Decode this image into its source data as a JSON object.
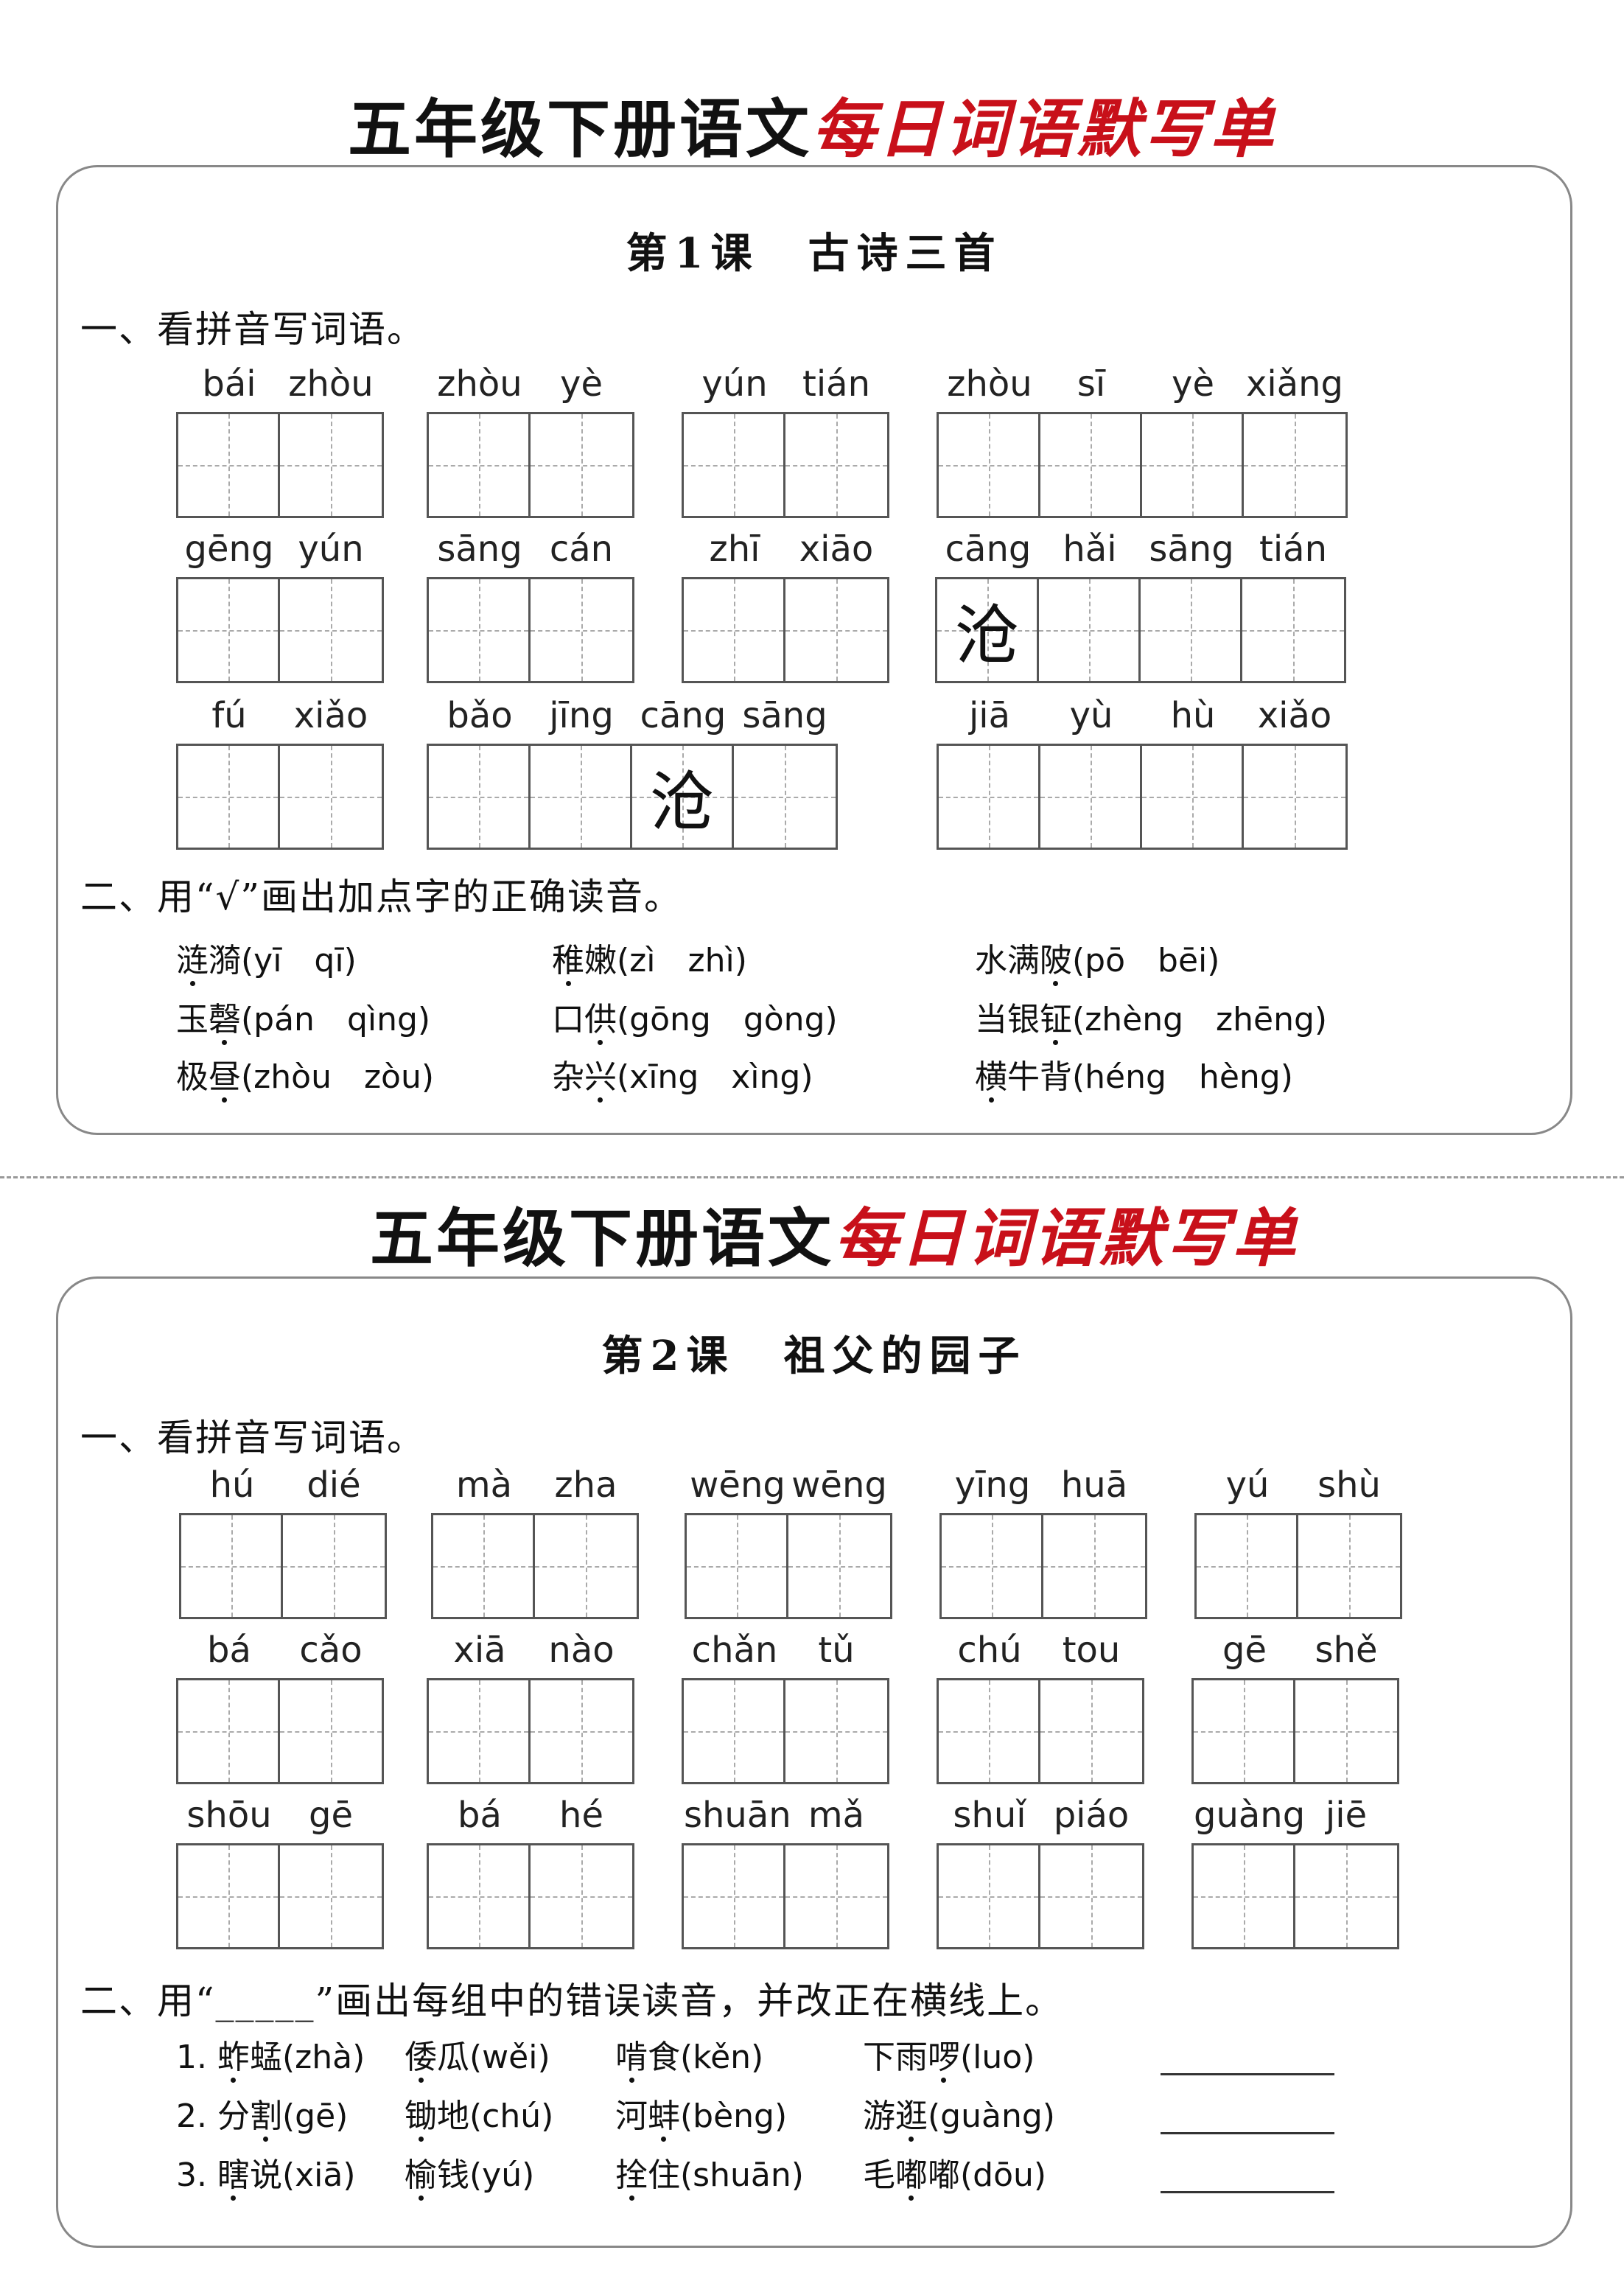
{
  "colors": {
    "accent": "#c8101a"
  },
  "sheets": [
    {
      "title_black": "五年级下册语文",
      "title_red": "每日词语默写单",
      "lesson": "第1课　古诗三首",
      "section1": "一、看拼音写词语。",
      "rows": [
        [
          {
            "pinyin": [
              "bái",
              "zhòu"
            ]
          },
          {
            "pinyin": [
              "zhòu",
              "yè"
            ]
          },
          {
            "pinyin": [
              "yún",
              "tián"
            ]
          },
          {
            "pinyin": [
              "zhòu",
              "sī",
              "yè",
              "xiǎng"
            ]
          }
        ],
        [
          {
            "pinyin": [
              "gēng",
              "yún"
            ]
          },
          {
            "pinyin": [
              "sāng",
              "cán"
            ]
          },
          {
            "pinyin": [
              "zhī",
              "xiāo"
            ]
          },
          {
            "pinyin": [
              "cāng",
              "hǎi",
              "sāng",
              "tián"
            ],
            "prefill": [
              "沧",
              "",
              "",
              ""
            ]
          }
        ],
        [
          {
            "pinyin": [
              "fú",
              "xiǎo"
            ]
          },
          {
            "pinyin": [
              "bǎo",
              "jīng",
              "cāng",
              "sāng"
            ],
            "prefill": [
              "",
              "",
              "沧",
              ""
            ]
          },
          {
            "pinyin": [
              "jiā",
              "yù",
              "hù",
              "xiǎo"
            ]
          }
        ]
      ],
      "section2": "二、用“√”画出加点字的正确读音。",
      "items": [
        [
          {
            "chars": "涟漪",
            "dot": 0,
            "reading": "(yī　qī)"
          },
          {
            "chars": "稚嫩",
            "dot": 0,
            "reading": "(zì　zhì)"
          },
          {
            "chars": "水满陂",
            "dot": 2,
            "reading": "(pō　bēi)"
          }
        ],
        [
          {
            "chars": "玉磬",
            "dot": 1,
            "reading": "(pán　qìng)"
          },
          {
            "chars": "口供",
            "dot": 1,
            "reading": "(gōng　gòng)"
          },
          {
            "chars": "当银钲",
            "dot": 2,
            "reading": "(zhèng　zhēng)"
          }
        ],
        [
          {
            "chars": "极昼",
            "dot": 1,
            "reading": "(zhòu　zòu)"
          },
          {
            "chars": "杂兴",
            "dot": 1,
            "reading": "(xīng　xìng)"
          },
          {
            "chars": "横牛背",
            "dot": 0,
            "reading": "(héng　hèng)"
          }
        ]
      ]
    },
    {
      "title_black": "五年级下册语文",
      "title_red": "每日词语默写单",
      "lesson": "第2课　祖父的园子",
      "section1": "一、看拼音写词语。",
      "rows": [
        [
          {
            "pinyin": [
              "hú",
              "dié"
            ]
          },
          {
            "pinyin": [
              "mà",
              "zha"
            ]
          },
          {
            "pinyin": [
              "wēng",
              "wēng"
            ]
          },
          {
            "pinyin": [
              "yīng",
              "huā"
            ]
          },
          {
            "pinyin": [
              "yú",
              "shù"
            ]
          }
        ],
        [
          {
            "pinyin": [
              "bá",
              "cǎo"
            ]
          },
          {
            "pinyin": [
              "xiā",
              "nào"
            ]
          },
          {
            "pinyin": [
              "chǎn",
              "tǔ"
            ]
          },
          {
            "pinyin": [
              "chú",
              "tou"
            ]
          },
          {
            "pinyin": [
              "gē",
              "shě"
            ]
          }
        ],
        [
          {
            "pinyin": [
              "shōu",
              "gē"
            ]
          },
          {
            "pinyin": [
              "bá",
              "hé"
            ]
          },
          {
            "pinyin": [
              "shuān",
              "mǎ"
            ]
          },
          {
            "pinyin": [
              "shuǐ",
              "piáo"
            ]
          },
          {
            "pinyin": [
              "guàng",
              "jiē"
            ]
          }
        ]
      ],
      "section2": "二、用“_____”画出每组中的错误读音，并改正在横线上。",
      "items": [
        [
          {
            "chars": "1. 蚱蜢",
            "dot": 3,
            "reading": "(zhà)"
          },
          {
            "chars": "倭瓜",
            "dot": 0,
            "reading": "(wěi)"
          },
          {
            "chars": "啃食",
            "dot": 0,
            "reading": "(kěn)"
          },
          {
            "chars": "下雨啰",
            "dot": 2,
            "reading": "(luo)"
          }
        ],
        [
          {
            "chars": "2. 分割",
            "dot": 4,
            "reading": "(gē)"
          },
          {
            "chars": "锄地",
            "dot": 0,
            "reading": "(chú)"
          },
          {
            "chars": "河蚌",
            "dot": 1,
            "reading": "(bèng)"
          },
          {
            "chars": "游逛",
            "dot": 1,
            "reading": "(guàng)"
          }
        ],
        [
          {
            "chars": "3. 瞎说",
            "dot": 3,
            "reading": "(xiā)"
          },
          {
            "chars": "榆钱",
            "dot": 0,
            "reading": "(yú)"
          },
          {
            "chars": "拴住",
            "dot": 0,
            "reading": "(shuān)"
          },
          {
            "chars": "毛嘟嘟",
            "dot": 1,
            "reading": "(dōu)"
          }
        ]
      ]
    }
  ]
}
